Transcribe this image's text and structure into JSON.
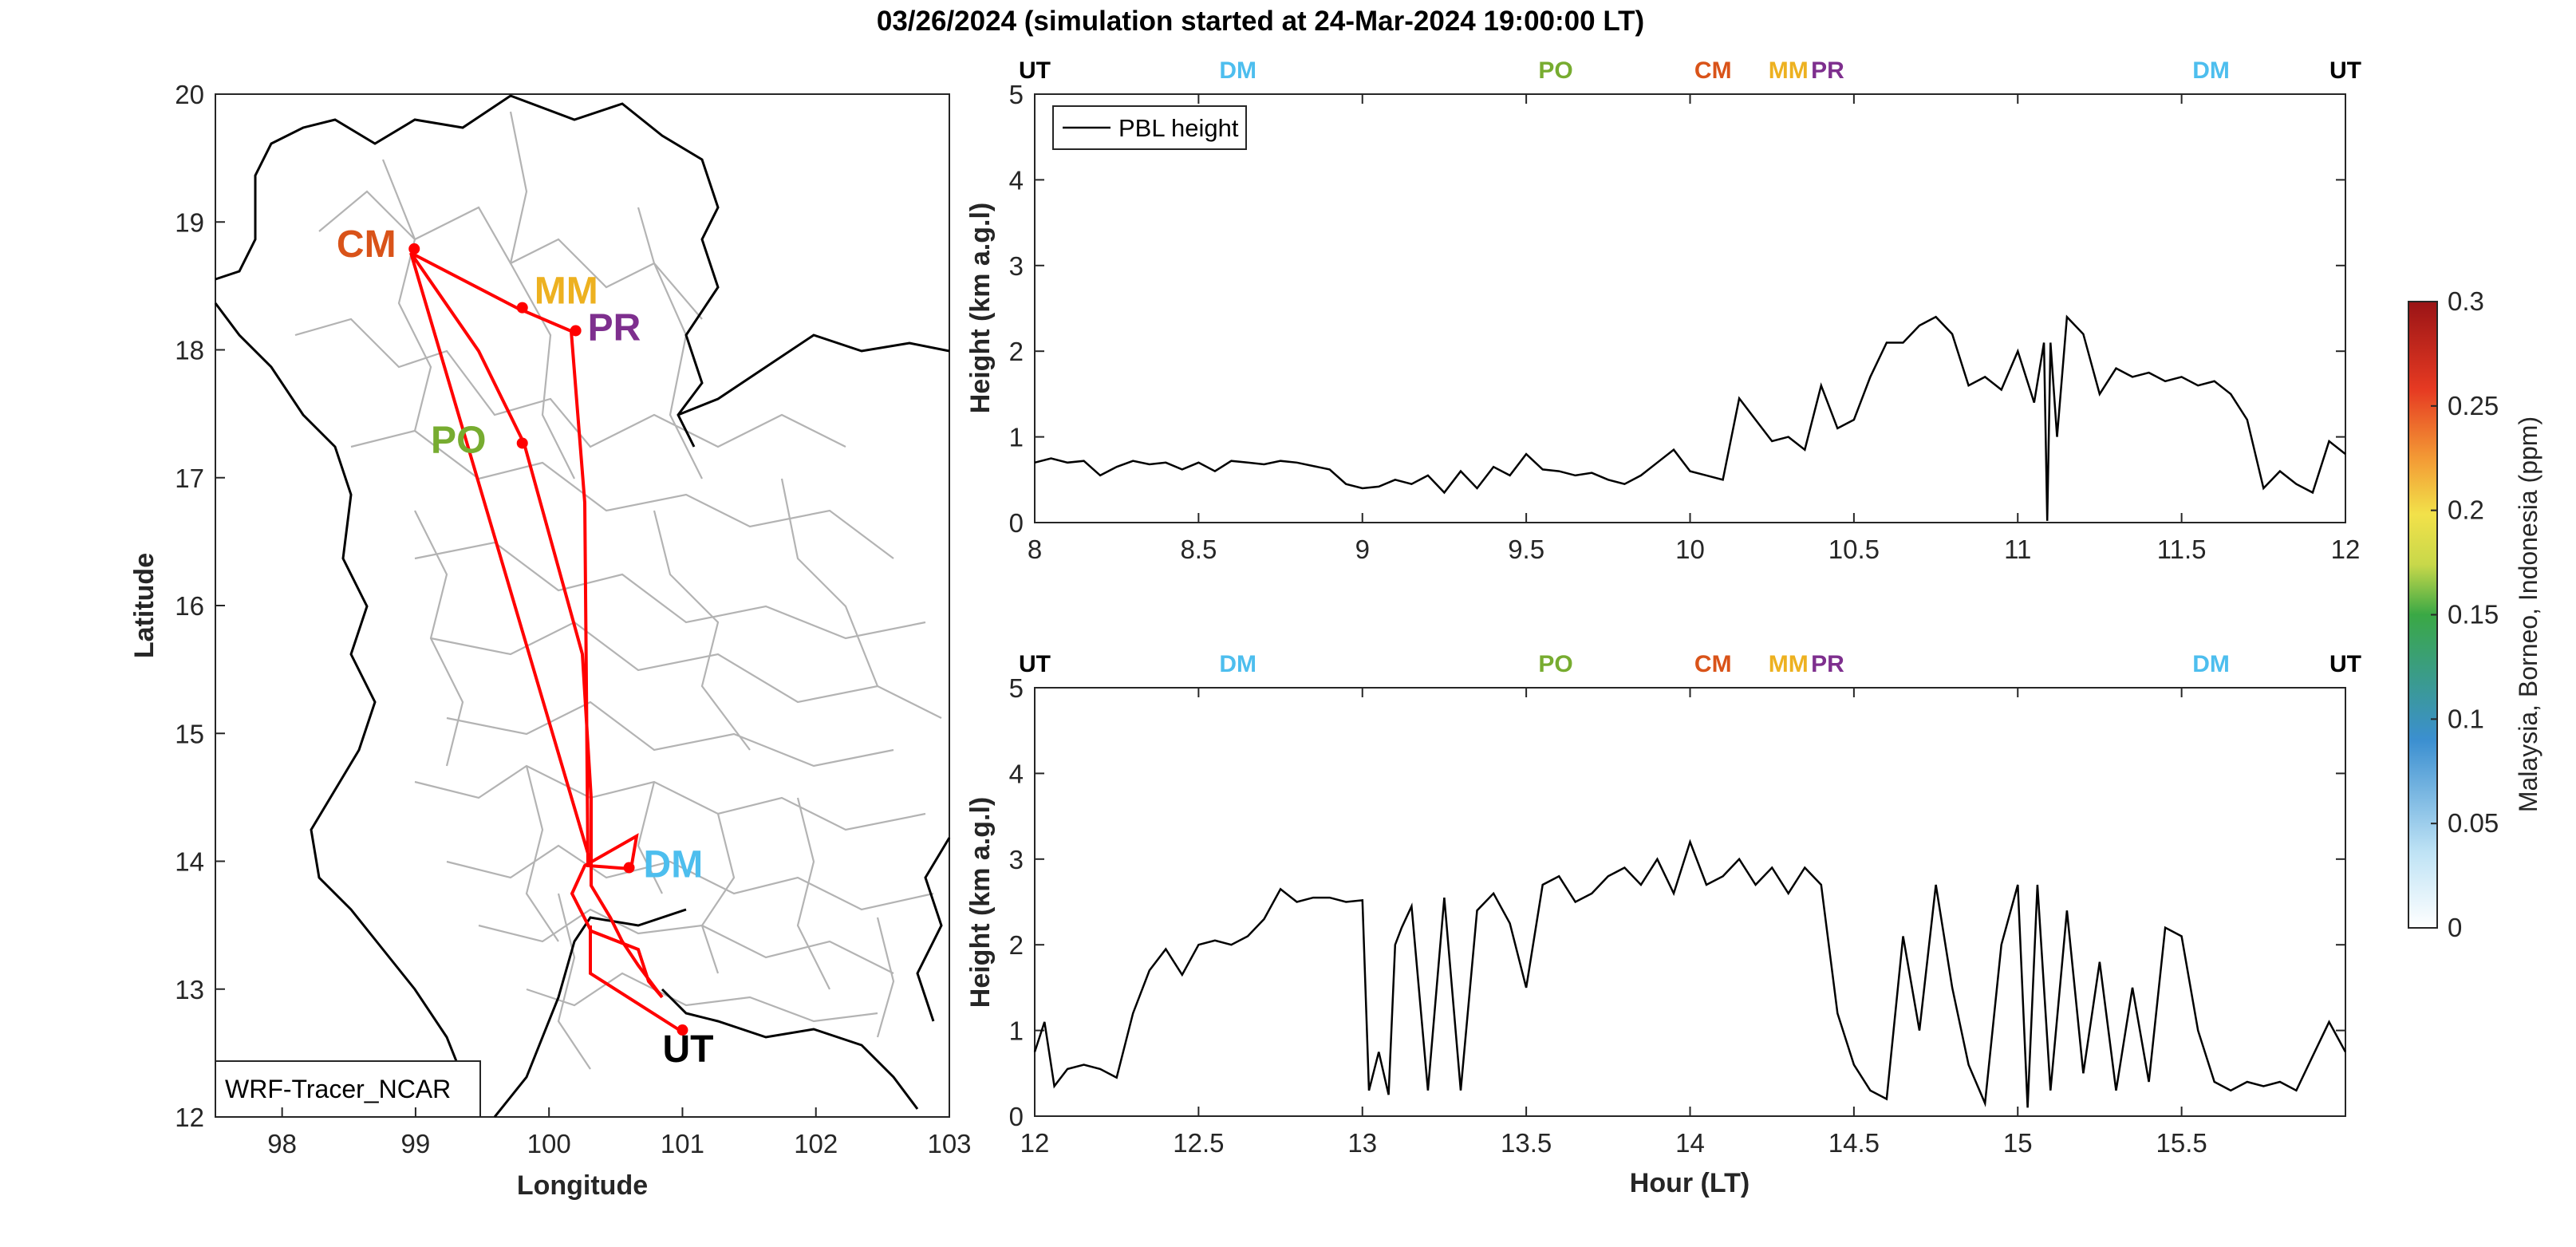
{
  "title": "03/26/2024 (simulation started at 24-Mar-2024 19:00:00 LT)",
  "colors": {
    "UT": "#000000",
    "DM": "#4DBEEE",
    "PO": "#77AC30",
    "CM": "#D95319",
    "MM": "#EDB120",
    "PR": "#7E2F8E",
    "track": "#FF0000",
    "line": "#000000"
  },
  "map": {
    "xlabel": "Longitude",
    "ylabel": "Latitude",
    "xlim": [
      97.5,
      103
    ],
    "ylim": [
      12,
      20
    ],
    "xticks": [
      98,
      99,
      100,
      101,
      102,
      103
    ],
    "yticks": [
      12,
      13,
      14,
      15,
      16,
      17,
      18,
      19,
      20
    ],
    "model_label": "WRF-Tracer_NCAR",
    "sites": [
      {
        "name": "CM",
        "lon": 98.99,
        "lat": 18.79
      },
      {
        "name": "MM",
        "lon": 99.8,
        "lat": 18.33
      },
      {
        "name": "PR",
        "lon": 100.2,
        "lat": 18.15
      },
      {
        "name": "PO",
        "lon": 99.8,
        "lat": 17.27
      },
      {
        "name": "DM",
        "lon": 100.6,
        "lat": 13.95
      },
      {
        "name": "UT",
        "lon": 101.0,
        "lat": 12.68
      }
    ]
  },
  "colorbar": {
    "label": "Malaysia, Borneo, Indonesia (ppm)",
    "range": [
      0,
      0.3
    ],
    "ticks": [
      "0",
      "0.05",
      "0.1",
      "0.15",
      "0.2",
      "0.25",
      "0.3"
    ]
  },
  "legend": "PBL height",
  "chart_data": [
    {
      "type": "line",
      "series": [
        {
          "name": "PBL height"
        }
      ],
      "ylabel": "Height (km a.g.l)",
      "xlim": [
        8,
        12
      ],
      "ylim": [
        0,
        5
      ],
      "xticks": [
        "8",
        "8.5",
        "9",
        "9.5",
        "10",
        "10.5",
        "11",
        "11.5",
        "12"
      ],
      "yticks": [
        "0",
        "1",
        "2",
        "3",
        "4",
        "5"
      ],
      "site_markers": [
        {
          "name": "UT",
          "x": 8.0
        },
        {
          "name": "DM",
          "x": 8.62
        },
        {
          "name": "PO",
          "x": 9.59
        },
        {
          "name": "CM",
          "x": 10.07
        },
        {
          "name": "MM",
          "x": 10.3
        },
        {
          "name": "PR",
          "x": 10.42
        },
        {
          "name": "DM",
          "x": 11.59
        },
        {
          "name": "UT",
          "x": 12.0
        }
      ],
      "x": [
        8.0,
        8.05,
        8.1,
        8.15,
        8.2,
        8.25,
        8.3,
        8.35,
        8.4,
        8.45,
        8.5,
        8.55,
        8.6,
        8.65,
        8.7,
        8.75,
        8.8,
        8.85,
        8.9,
        8.95,
        9.0,
        9.05,
        9.1,
        9.15,
        9.2,
        9.25,
        9.3,
        9.35,
        9.4,
        9.45,
        9.5,
        9.55,
        9.6,
        9.65,
        9.7,
        9.75,
        9.8,
        9.85,
        9.9,
        9.95,
        10.0,
        10.05,
        10.1,
        10.15,
        10.2,
        10.25,
        10.3,
        10.35,
        10.4,
        10.45,
        10.5,
        10.55,
        10.6,
        10.65,
        10.7,
        10.75,
        10.8,
        10.85,
        10.9,
        10.95,
        11.0,
        11.05,
        11.08,
        11.09,
        11.1,
        11.12,
        11.15,
        11.2,
        11.25,
        11.3,
        11.35,
        11.4,
        11.45,
        11.5,
        11.55,
        11.6,
        11.65,
        11.7,
        11.75,
        11.8,
        11.85,
        11.9,
        11.95,
        12.0
      ],
      "y": [
        0.7,
        0.75,
        0.7,
        0.72,
        0.55,
        0.65,
        0.72,
        0.68,
        0.7,
        0.62,
        0.7,
        0.6,
        0.72,
        0.7,
        0.68,
        0.72,
        0.7,
        0.66,
        0.62,
        0.45,
        0.4,
        0.42,
        0.5,
        0.45,
        0.55,
        0.35,
        0.6,
        0.4,
        0.65,
        0.55,
        0.8,
        0.62,
        0.6,
        0.55,
        0.58,
        0.5,
        0.45,
        0.55,
        0.7,
        0.85,
        0.6,
        0.55,
        0.5,
        1.45,
        1.2,
        0.95,
        1.0,
        0.85,
        1.6,
        1.1,
        1.2,
        1.7,
        2.1,
        2.1,
        2.3,
        2.4,
        2.2,
        1.6,
        1.7,
        1.55,
        2.0,
        1.4,
        2.1,
        0.02,
        2.1,
        1.0,
        2.4,
        2.2,
        1.5,
        1.8,
        1.7,
        1.75,
        1.65,
        1.7,
        1.6,
        1.65,
        1.5,
        1.2,
        0.4,
        0.6,
        0.45,
        0.35,
        0.95,
        0.8
      ]
    },
    {
      "type": "line",
      "series": [
        {
          "name": "PBL height"
        }
      ],
      "xlabel": "Hour (LT)",
      "ylabel": "Height (km a.g.l)",
      "xlim": [
        12,
        16
      ],
      "ylim": [
        0,
        5
      ],
      "xticks": [
        "12",
        "12.5",
        "13",
        "13.5",
        "14",
        "14.5",
        "15",
        "15.5"
      ],
      "yticks": [
        "0",
        "1",
        "2",
        "3",
        "4",
        "5"
      ],
      "site_markers": [
        {
          "name": "UT",
          "x": 12.0
        },
        {
          "name": "DM",
          "x": 12.62
        },
        {
          "name": "PO",
          "x": 13.59
        },
        {
          "name": "CM",
          "x": 14.07
        },
        {
          "name": "MM",
          "x": 14.3
        },
        {
          "name": "PR",
          "x": 14.42
        },
        {
          "name": "DM",
          "x": 15.59
        },
        {
          "name": "UT",
          "x": 16.0
        }
      ],
      "x": [
        12.0,
        12.03,
        12.06,
        12.1,
        12.15,
        12.2,
        12.25,
        12.3,
        12.35,
        12.4,
        12.45,
        12.5,
        12.55,
        12.6,
        12.65,
        12.7,
        12.75,
        12.8,
        12.85,
        12.9,
        12.95,
        13.0,
        13.02,
        13.05,
        13.08,
        13.1,
        13.12,
        13.15,
        13.2,
        13.25,
        13.3,
        13.35,
        13.4,
        13.45,
        13.5,
        13.55,
        13.6,
        13.65,
        13.7,
        13.75,
        13.8,
        13.85,
        13.9,
        13.95,
        14.0,
        14.05,
        14.1,
        14.15,
        14.2,
        14.25,
        14.3,
        14.35,
        14.4,
        14.45,
        14.5,
        14.55,
        14.6,
        14.65,
        14.7,
        14.75,
        14.8,
        14.85,
        14.9,
        14.95,
        15.0,
        15.03,
        15.06,
        15.1,
        15.15,
        15.2,
        15.25,
        15.3,
        15.35,
        15.4,
        15.45,
        15.5,
        15.55,
        15.6,
        15.65,
        15.7,
        15.75,
        15.8,
        15.85,
        15.9,
        15.95,
        16.0
      ],
      "y": [
        0.75,
        1.1,
        0.35,
        0.55,
        0.6,
        0.55,
        0.45,
        1.2,
        1.7,
        1.95,
        1.65,
        2.0,
        2.05,
        2.0,
        2.1,
        2.3,
        2.65,
        2.5,
        2.55,
        2.55,
        2.5,
        2.52,
        0.3,
        0.75,
        0.25,
        2.0,
        2.2,
        2.45,
        0.3,
        2.55,
        0.3,
        2.4,
        2.6,
        2.25,
        1.5,
        2.7,
        2.8,
        2.5,
        2.6,
        2.8,
        2.9,
        2.7,
        3.0,
        2.6,
        3.2,
        2.7,
        2.8,
        3.0,
        2.7,
        2.9,
        2.6,
        2.9,
        2.7,
        1.2,
        0.6,
        0.3,
        0.2,
        2.1,
        1.0,
        2.7,
        1.5,
        0.6,
        0.15,
        2.0,
        2.7,
        0.1,
        2.7,
        0.3,
        2.4,
        0.5,
        1.8,
        0.3,
        1.5,
        0.4,
        2.2,
        2.1,
        1.0,
        0.4,
        0.3,
        0.4,
        0.35,
        0.4,
        0.3,
        0.7,
        1.1,
        0.75
      ]
    }
  ]
}
